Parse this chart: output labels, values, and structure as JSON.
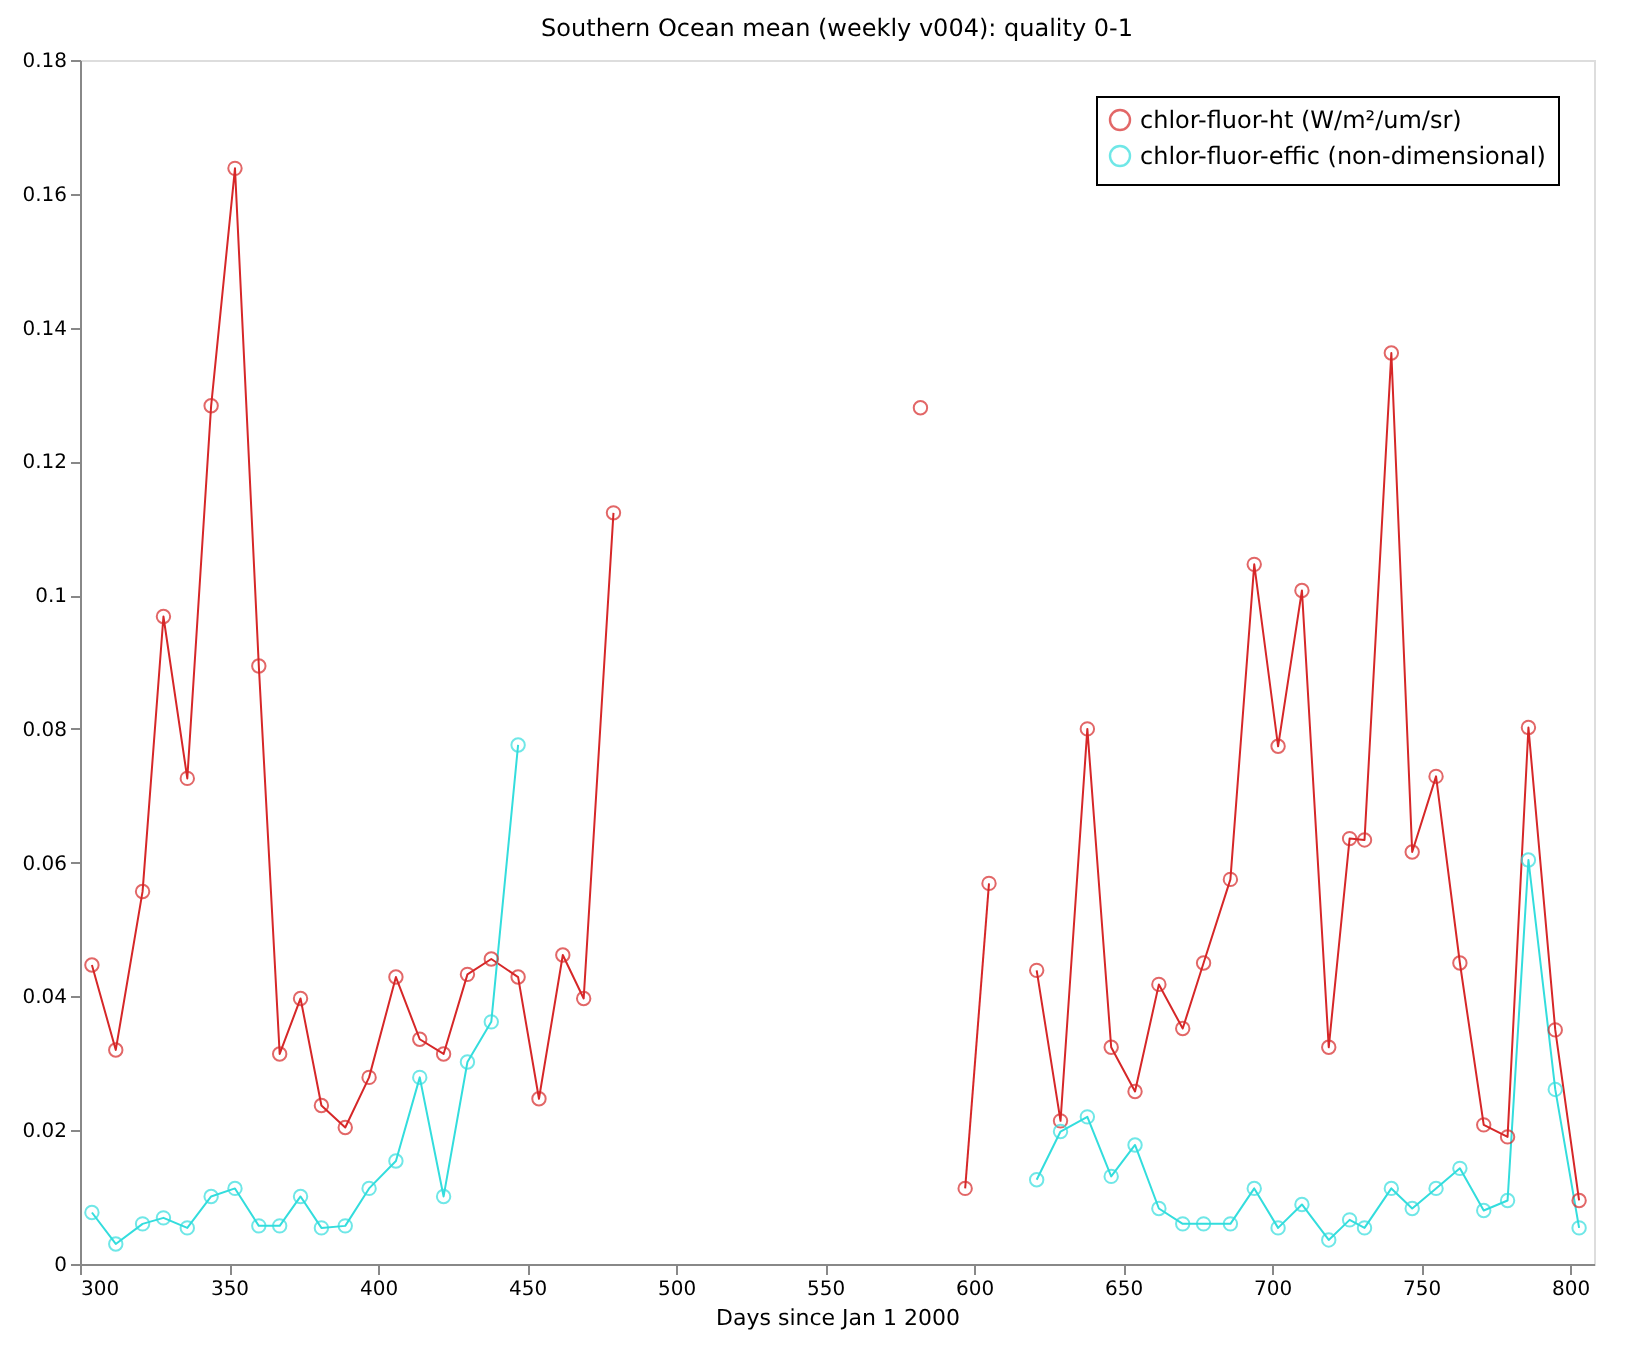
{
  "chart_data": {
    "type": "line",
    "title": "Southern Ocean mean (weekly v004): quality 0-1",
    "xlabel": "Days since Jan 1 2000",
    "xlim": [
      300,
      808
    ],
    "xticks": [
      300,
      350,
      400,
      450,
      500,
      550,
      600,
      650,
      700,
      750,
      800
    ],
    "ylim": [
      0,
      0.18
    ],
    "yticks": [
      0,
      0.02,
      0.04,
      0.06,
      0.08,
      0.1,
      0.12,
      0.14,
      0.16,
      0.18
    ],
    "grid": false,
    "legend": "top right",
    "marker": "circle",
    "line_style": "solid",
    "series": [
      {
        "name": "chlor-fluor-ht (W/m²/um/sr)",
        "color": "#d62728",
        "x": [
          304,
          312,
          321,
          328,
          336,
          344,
          352,
          360,
          367,
          374,
          381,
          389,
          397,
          406,
          414,
          422,
          430,
          438,
          447,
          454,
          462,
          469,
          479,
          530,
          582,
          590,
          597,
          605,
          613,
          621,
          629,
          638,
          646,
          654,
          662,
          670,
          677,
          686,
          694,
          702,
          710,
          719,
          726,
          731,
          740,
          747,
          755,
          763,
          771,
          779,
          786,
          795,
          803
        ],
        "values": [
          0.0447,
          0.032,
          0.0557,
          0.0968,
          0.0726,
          0.1283,
          0.1638,
          0.0894,
          0.0314,
          0.0397,
          0.0237,
          0.0204,
          0.0279,
          0.0429,
          0.0336,
          0.0314,
          0.0433,
          0.0456,
          0.0429,
          0.0247,
          0.0462,
          0.0397,
          0.1123,
          null,
          0.128,
          null,
          0.0113,
          0.0569,
          null,
          0.0439,
          0.0214,
          0.08,
          0.0324,
          0.0258,
          0.0418,
          0.0352,
          0.045,
          0.0575,
          0.1046,
          0.0774,
          0.1007,
          0.0324,
          0.0636,
          0.0634,
          0.1362,
          0.0616,
          0.0729,
          0.045,
          0.0208,
          0.019,
          0.0802,
          0.035,
          0.0095
        ]
      },
      {
        "name": "chlor-fluor-effic (non-dimensional)",
        "color": "#33dddd",
        "x": [
          304,
          312,
          321,
          328,
          336,
          344,
          352,
          360,
          367,
          374,
          381,
          389,
          397,
          406,
          414,
          422,
          430,
          438,
          447,
          530,
          621,
          629,
          638,
          646,
          654,
          662,
          670,
          677,
          686,
          694,
          702,
          710,
          719,
          726,
          731,
          740,
          747,
          755,
          763,
          771,
          779,
          786,
          795,
          803
        ],
        "values": [
          0.0077,
          0.003,
          0.006,
          0.0069,
          0.0054,
          0.0101,
          0.0113,
          0.0057,
          0.0057,
          0.0101,
          0.0054,
          0.0057,
          0.0113,
          0.0154,
          0.0279,
          0.0101,
          0.0302,
          0.0362,
          0.0776,
          null,
          0.0126,
          0.0198,
          0.022,
          0.0131,
          0.0178,
          0.0083,
          0.006,
          0.006,
          0.006,
          0.0113,
          0.0054,
          0.0089,
          0.0036,
          0.0066,
          0.0054,
          0.0113,
          0.0083,
          0.0113,
          0.0143,
          0.008,
          0.0095,
          0.0604,
          0.0261,
          0.0054
        ]
      }
    ]
  }
}
